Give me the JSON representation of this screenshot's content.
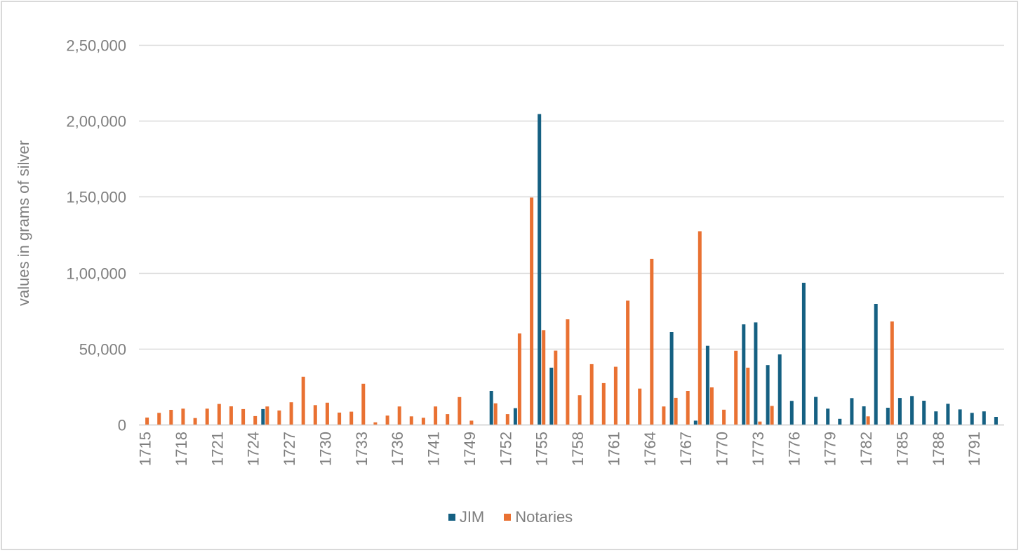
{
  "chart_data": {
    "type": "bar",
    "title": "",
    "xlabel": "",
    "ylabel": "values in grams of silver",
    "ylim": [
      0,
      250000
    ],
    "yticks": [
      0,
      50000,
      100000,
      150000,
      200000,
      250000
    ],
    "ytick_labels": [
      "0",
      "50,000",
      "1,00,000",
      "1,50,000",
      "2,00,000",
      "2,50,000"
    ],
    "grid": true,
    "legend_position": "bottom",
    "x_label_every": 3,
    "categories": [
      "1715",
      "1716",
      "1717",
      "1718",
      "1719",
      "1720",
      "1721",
      "1722",
      "1723",
      "1724",
      "1725",
      "1726",
      "1727",
      "1728",
      "1729",
      "1730",
      "1731",
      "1732",
      "1733",
      "1734",
      "1735",
      "1736",
      "1737",
      "1738",
      "1741",
      "1743",
      "1746",
      "1749",
      "1750",
      "1751",
      "1752",
      "1753",
      "1754",
      "1755",
      "1756",
      "1757",
      "1758",
      "1759",
      "1760",
      "1761",
      "1762",
      "1763",
      "1764",
      "1765",
      "1766",
      "1767",
      "1768",
      "1769",
      "1770",
      "1771",
      "1772",
      "1773",
      "1774",
      "1775",
      "1776",
      "1777",
      "1778",
      "1779",
      "1780",
      "1781",
      "1782",
      "1783",
      "1784",
      "1785",
      "1786",
      "1787",
      "1788",
      "1789",
      "1790",
      "1791",
      "1792",
      "1793"
    ],
    "series": [
      {
        "name": "JIM",
        "color": "#156082",
        "values": [
          null,
          null,
          null,
          null,
          null,
          null,
          null,
          null,
          null,
          null,
          10200,
          null,
          null,
          null,
          null,
          null,
          null,
          null,
          null,
          null,
          null,
          null,
          null,
          null,
          null,
          null,
          null,
          null,
          null,
          22200,
          null,
          10800,
          null,
          204500,
          37500,
          null,
          null,
          null,
          null,
          null,
          null,
          null,
          null,
          null,
          61000,
          null,
          2600,
          51900,
          null,
          null,
          66000,
          67300,
          39200,
          46200,
          15600,
          93400,
          18200,
          10500,
          3800,
          17400,
          12000,
          79500,
          11100,
          17500,
          18800,
          15700,
          8700,
          13700,
          10000,
          7700,
          8700,
          5100
        ]
      },
      {
        "name": "Notaries",
        "color": "#E97132",
        "values": [
          4600,
          7700,
          9700,
          10500,
          4300,
          10500,
          13600,
          12000,
          10200,
          5600,
          11900,
          9300,
          14700,
          31500,
          12800,
          14400,
          7900,
          8500,
          26900,
          1500,
          5900,
          11900,
          5400,
          4500,
          11900,
          6900,
          18100,
          2600,
          null,
          14000,
          6900,
          60000,
          149500,
          62200,
          48700,
          69300,
          19300,
          39800,
          27300,
          38100,
          81600,
          23700,
          109100,
          11900,
          17600,
          22200,
          127300,
          24500,
          9800,
          48600,
          37500,
          2000,
          12300,
          null,
          null,
          null,
          null,
          null,
          null,
          null,
          5400,
          null,
          67900,
          null,
          null,
          null,
          null,
          null,
          null,
          null,
          null,
          null
        ]
      }
    ]
  },
  "legend": {
    "items": [
      {
        "label": "JIM",
        "color": "#156082"
      },
      {
        "label": "Notaries",
        "color": "#E97132"
      }
    ]
  },
  "style": {
    "gridline_color": "#d9d9d9",
    "axis_text_color": "#7f7f7f"
  }
}
